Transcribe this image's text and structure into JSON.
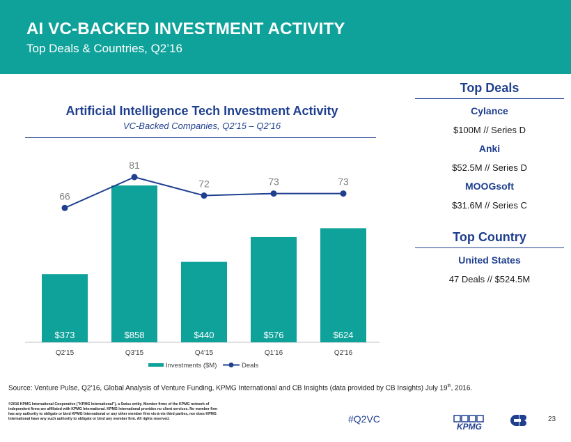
{
  "header": {
    "title": "AI VC-BACKED INVESTMENT ACTIVITY",
    "subtitle": "Top Deals & Countries, Q2’16"
  },
  "chart_data": {
    "type": "bar",
    "title": "Artificial Intelligence Tech Investment Activity",
    "subtitle": "VC-Backed Companies, Q2’15 – Q2’16",
    "categories": [
      "Q2'15",
      "Q3'15",
      "Q4'15",
      "Q1'16",
      "Q2'16"
    ],
    "series": [
      {
        "name": "Investments ($M)",
        "type": "bar",
        "values": [
          373,
          858,
          440,
          576,
          624
        ],
        "labels": [
          "$373",
          "$858",
          "$440",
          "$576",
          "$624"
        ],
        "color": "#0fa29a"
      },
      {
        "name": "Deals",
        "type": "line",
        "values": [
          66,
          81,
          72,
          73,
          73
        ],
        "color": "#1f3f8f"
      }
    ],
    "legend": "bottom",
    "grid": false
  },
  "top_deals": {
    "heading": "Top Deals",
    "items": [
      {
        "company": "Cylance",
        "detail": "$100M // Series D"
      },
      {
        "company": "Anki",
        "detail": "$52.5M // Series D"
      },
      {
        "company": "MOOGsoft",
        "detail": "$31.6M // Series C"
      }
    ]
  },
  "top_country": {
    "heading": "Top Country",
    "country": "United States",
    "detail": "47 Deals // $524.5M"
  },
  "footer": {
    "source_main": "Source: Venture Pulse, Q2'16, Global Analysis of Venture Funding, KPMG International and CB Insights (data provided by CB Insights) July 19",
    "source_sup": "th",
    "source_end": ", 2016.",
    "disclaimer": "©2016 KPMG International Cooperative (\"KPMG International\"), a Swiss entity. Member firms of the KPMG network of independent firms are affiliated with KPMG International. KPMG International provides no client services. No member firm has any authority to obligate or bind KPMG International or any other member firm vis-à-vis third parties, nor does KPMG International have any such authority to obligate or bind any member firm. All rights reserved.",
    "hashtag": "#Q2VC",
    "kpmg_logo_text": "KPMG",
    "page_number": "23"
  },
  "colors": {
    "teal": "#0fa29a",
    "navy": "#1f3f8f"
  }
}
